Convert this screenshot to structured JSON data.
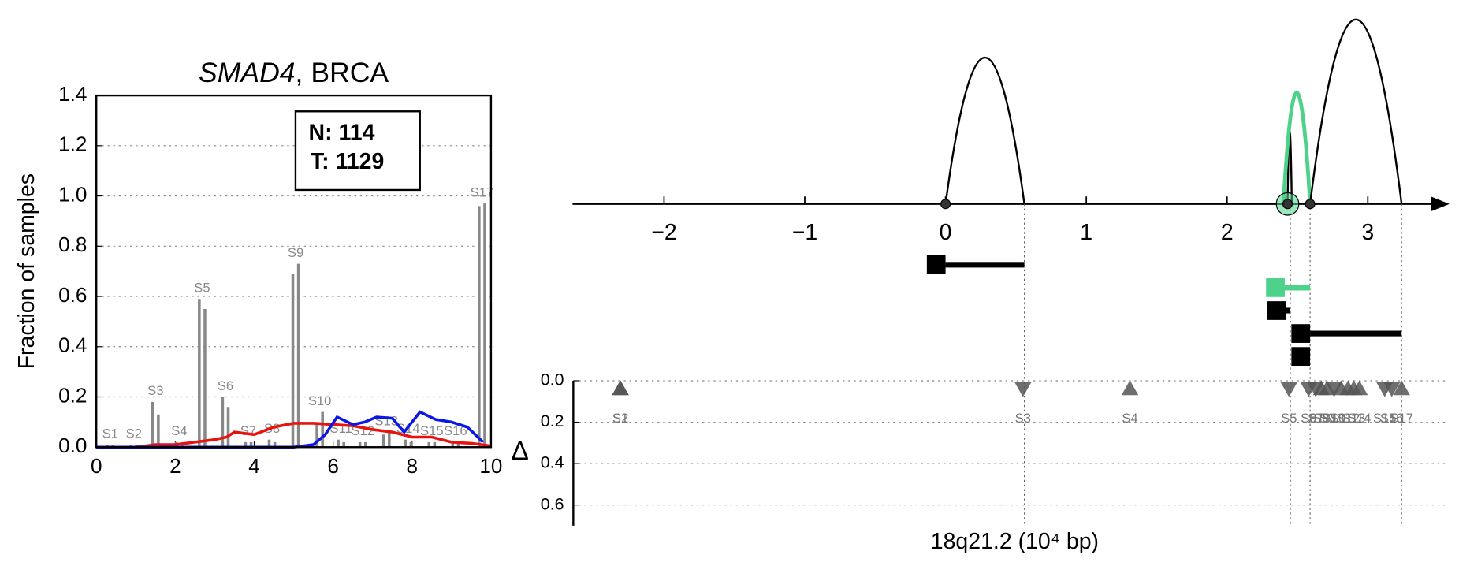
{
  "chart_data": [
    {
      "type": "bar",
      "title": [
        "SMAD4",
        ", BRCA"
      ],
      "ylabel": "Fraction of samples",
      "xlim": [
        0,
        10
      ],
      "ylim": [
        0,
        1.4
      ],
      "xticks": [
        0,
        2,
        4,
        6,
        8,
        10
      ],
      "yticks": [
        {
          "value": 0,
          "label": "0.0"
        },
        {
          "value": 0.2,
          "label": "0.2"
        },
        {
          "value": 0.4,
          "label": "0.4"
        },
        {
          "value": 0.6,
          "label": "0.6"
        },
        {
          "value": 0.8,
          "label": "0.8"
        },
        {
          "value": 1,
          "label": "1.0"
        },
        {
          "value": 1.2,
          "label": "1.2"
        },
        {
          "value": 1.4,
          "label": "1.4"
        }
      ],
      "grid": true,
      "annotation": [
        "N: 114",
        "T: 1129"
      ],
      "bar_color": "#888888",
      "sites": {
        "labels": [
          "S1",
          "S2",
          "S3",
          "S4",
          "S5",
          "S6",
          "S7",
          "S8",
          "S9",
          "S10",
          "S11",
          "S12",
          "S13",
          "S14",
          "S15",
          "S16",
          "S17"
        ],
        "x": [
          0.35,
          0.95,
          1.5,
          2.1,
          2.68,
          3.27,
          3.85,
          4.45,
          5.05,
          5.66,
          6.2,
          6.75,
          7.35,
          7.9,
          8.5,
          9.1,
          9.77
        ],
        "values": [
          [
            0.01,
            0.01
          ],
          [
            0.01,
            0.01
          ],
          [
            0.18,
            0.13
          ],
          [
            0.02,
            0.02
          ],
          [
            0.59,
            0.55
          ],
          [
            0.2,
            0.16
          ],
          [
            0.02,
            0.02
          ],
          [
            0.03,
            0.02
          ],
          [
            0.69,
            0.73
          ],
          [
            0.1,
            0.14
          ],
          [
            0.03,
            0.02
          ],
          [
            0.02,
            0.02
          ],
          [
            0.05,
            0.06
          ],
          [
            0.03,
            0.02
          ],
          [
            0.02,
            0.02
          ],
          [
            0.02,
            0.02
          ],
          [
            0.96,
            0.97
          ]
        ]
      },
      "series": [
        {
          "color": "#e8130f",
          "x": [
            0,
            1,
            1.5,
            2,
            2.5,
            3,
            3.3,
            3.5,
            4,
            4.5,
            5,
            5.5,
            6,
            6.5,
            7,
            7.5,
            8,
            8.5,
            9,
            9.5,
            10
          ],
          "values": [
            0,
            0,
            0.01,
            0.01,
            0.02,
            0.03,
            0.04,
            0.06,
            0.05,
            0.08,
            0.095,
            0.095,
            0.09,
            0.085,
            0.07,
            0.06,
            0.04,
            0.04,
            0.02,
            0.015,
            0.005
          ]
        },
        {
          "color": "#0b17e6",
          "x": [
            0,
            5,
            5.5,
            5.8,
            6.1,
            6.5,
            6.8,
            7.1,
            7.5,
            7.8,
            8.2,
            8.6,
            9,
            9.4,
            9.8
          ],
          "values": [
            0,
            0,
            0.01,
            0.05,
            0.12,
            0.09,
            0.1,
            0.12,
            0.115,
            0.06,
            0.14,
            0.11,
            0.1,
            0.08,
            0.02
          ]
        }
      ]
    },
    {
      "type": "arc",
      "xlim": [
        -2.65,
        3.58
      ],
      "xticks": [
        {
          "value": -2,
          "label": "−2"
        },
        {
          "value": -1,
          "label": "−1"
        },
        0,
        1,
        2,
        3
      ],
      "arcs": {
        "start": [
          0,
          2.43,
          2.4,
          2.59
        ],
        "end": [
          0.56,
          2.46,
          2.59,
          3.24
        ],
        "height": [
          1.04,
          0.52,
          0.79,
          1.31
        ],
        "color": [
          "#000000",
          "#000000",
          "#4dd28a",
          "#000000"
        ]
      },
      "points": [
        0,
        2.43,
        2.59
      ],
      "highlight": 2.43,
      "highlight_color": "#4dd28a",
      "segments": {
        "start": [
          0,
          2.41,
          2.42,
          2.59,
          2.59
        ],
        "end": [
          0.56,
          2.59,
          2.45,
          3.24,
          2.59
        ],
        "color": [
          "#000000",
          "#4dd28a",
          "#000000",
          "#000000",
          "#000000"
        ]
      },
      "guides": [
        0.56,
        2.45,
        2.59,
        3.24
      ],
      "delta": {
        "ylabel": "Δ",
        "xlabel": "18q21.2 (10⁴ bp)",
        "ylim": [
          0,
          0.7
        ],
        "yticks": [
          {
            "value": 0,
            "label": "0.0"
          },
          {
            "value": 0.2,
            "label": "0.2"
          },
          {
            "value": 0.4,
            "label": "0.4"
          },
          {
            "value": 0.6,
            "label": "0.6"
          }
        ],
        "grid": true,
        "color": "#555555",
        "sites": {
          "labels": [
            "S1",
            "S2",
            "S3",
            "S4",
            "S5",
            "S6",
            "S7",
            "S8",
            "S9",
            "S10",
            "S11",
            "S12",
            "S13",
            "S14",
            "S15",
            "S16",
            "S17"
          ],
          "x": [
            -2.31,
            -2.31,
            0.55,
            1.31,
            2.44,
            2.58,
            2.63,
            2.67,
            2.71,
            2.76,
            2.81,
            2.86,
            2.9,
            2.94,
            3.12,
            3.17,
            3.24
          ],
          "values": [
            0.02,
            0.02,
            0.02,
            0.02,
            0.02,
            0.02,
            0.02,
            0.02,
            0.02,
            0.02,
            0.02,
            0.02,
            0.02,
            0.02,
            0.02,
            0.02,
            0.02
          ],
          "direction": [
            "up",
            "up",
            "down",
            "up",
            "down",
            "down",
            "down",
            "up",
            "up",
            "down",
            "up",
            "up",
            "up",
            "up",
            "down",
            "down",
            "up"
          ]
        }
      }
    }
  ]
}
